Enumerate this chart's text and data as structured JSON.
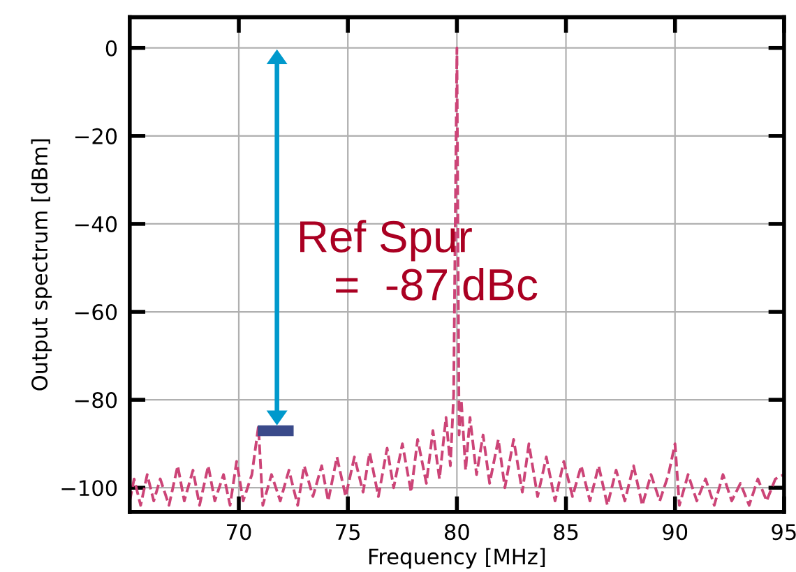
{
  "chart_data": {
    "type": "line",
    "xlabel": "Frequency [MHz]",
    "ylabel": "Output spectrum [dBm]",
    "xlim": [
      65,
      95
    ],
    "ylim": [
      -105.5,
      7
    ],
    "xticks": [
      70,
      75,
      80,
      85,
      90,
      95
    ],
    "yticks": [
      0,
      -20,
      -40,
      -60,
      -80,
      -100
    ],
    "grid": true,
    "line_style": "dashed",
    "marker": "none",
    "series": [
      {
        "color": "#cc4477",
        "x": [
          65.0,
          65.2,
          65.5,
          65.8,
          66.1,
          66.4,
          66.8,
          67.2,
          67.5,
          67.9,
          68.2,
          68.6,
          68.9,
          69.3,
          69.6,
          69.9,
          70.2,
          70.6,
          70.9,
          71.1,
          71.5,
          71.9,
          72.3,
          72.7,
          73.0,
          73.4,
          73.8,
          74.1,
          74.5,
          74.9,
          75.3,
          75.7,
          76.0,
          76.4,
          76.8,
          77.1,
          77.5,
          77.9,
          78.2,
          78.6,
          78.9,
          79.2,
          79.5,
          79.7,
          79.85,
          80.0,
          80.1,
          80.2,
          80.4,
          80.6,
          80.9,
          81.2,
          81.5,
          81.9,
          82.2,
          82.6,
          83.0,
          83.3,
          83.7,
          84.1,
          84.5,
          84.9,
          85.3,
          85.7,
          86.1,
          86.5,
          86.9,
          87.3,
          87.7,
          88.1,
          88.5,
          88.9,
          89.3,
          89.7,
          90.0,
          90.2,
          90.6,
          91.0,
          91.4,
          91.8,
          92.2,
          92.6,
          93.0,
          93.4,
          93.8,
          94.2,
          94.6,
          95.0
        ],
        "values": [
          -103,
          -98,
          -104,
          -97,
          -103,
          -98,
          -104,
          -95,
          -103,
          -96,
          -104,
          -95,
          -103,
          -97,
          -104,
          -94,
          -103,
          -97,
          -86,
          -104,
          -97,
          -103,
          -96,
          -104,
          -95,
          -102,
          -95,
          -103,
          -93,
          -102,
          -93,
          -101,
          -92,
          -102,
          -91,
          -100,
          -90,
          -101,
          -89,
          -99,
          -87,
          -98,
          -84,
          -95,
          -79,
          0,
          -88,
          -80,
          -96,
          -84,
          -97,
          -88,
          -99,
          -89,
          -100,
          -89,
          -101,
          -90,
          -102,
          -93,
          -103,
          -94,
          -102,
          -95,
          -103,
          -95,
          -104,
          -96,
          -103,
          -95,
          -104,
          -97,
          -103,
          -97,
          -90,
          -104,
          -97,
          -103,
          -98,
          -104,
          -97,
          -103,
          -99,
          -104,
          -98,
          -103,
          -98,
          -97
        ]
      }
    ],
    "annotations": [
      "Ref Spur\n   =  -87 dBc"
    ]
  }
}
